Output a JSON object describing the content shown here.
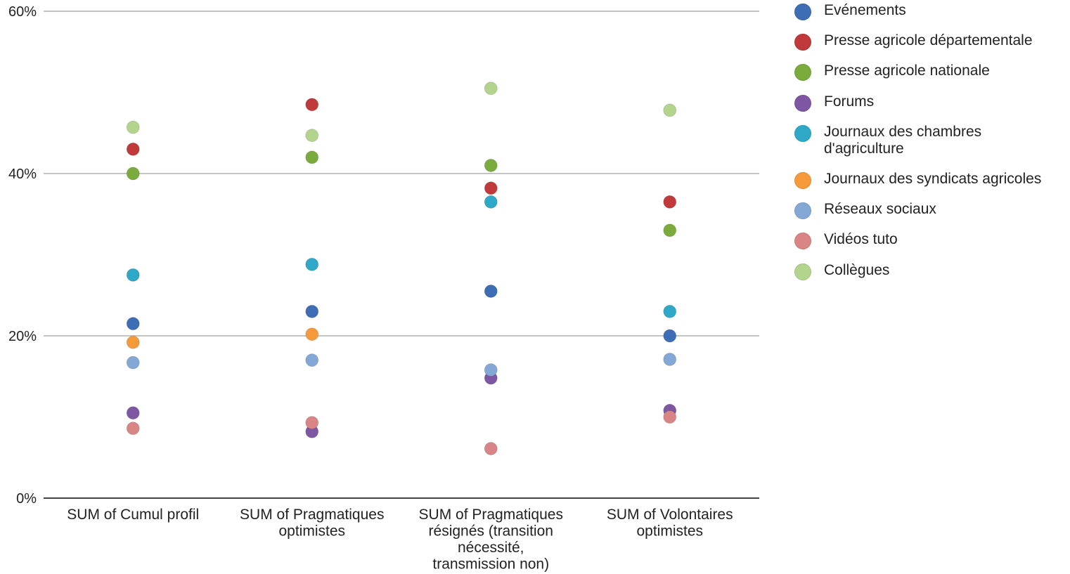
{
  "chart_data": {
    "type": "scatter",
    "title": "",
    "xlabel": "",
    "ylabel": "",
    "ylim": [
      0,
      60
    ],
    "yticks": [
      "0%",
      "20%",
      "40%",
      "60%"
    ],
    "grid": true,
    "legend_position": "right",
    "categories": [
      "SUM of Cumul profil",
      "SUM of Pragmatiques optimistes",
      "SUM of Pragmatiques résignés (transition nécessité, transmission non)",
      "SUM of Volontaires optimistes"
    ],
    "category_lines": [
      [
        "SUM of Cumul profil"
      ],
      [
        "SUM of Pragmatiques",
        "optimistes"
      ],
      [
        "SUM of Pragmatiques",
        "résignés (transition",
        "nécessité,",
        "transmission non)"
      ],
      [
        "SUM of Volontaires",
        "optimistes"
      ]
    ],
    "series": [
      {
        "name": "Evénements",
        "color": "#3d6db5",
        "values": [
          21.5,
          23,
          25.5,
          20
        ]
      },
      {
        "name": "Presse agricole départementale",
        "color": "#c0393b",
        "values": [
          43,
          48.5,
          38.2,
          36.5
        ]
      },
      {
        "name": "Presse agricole nationale",
        "color": "#7bab3c",
        "values": [
          40,
          42,
          41,
          33
        ]
      },
      {
        "name": "Forums",
        "color": "#7e57a3",
        "values": [
          10.5,
          8.2,
          14.8,
          10.8
        ]
      },
      {
        "name": "Journaux des chambres d'agriculture",
        "color": "#2ea8c6",
        "values": [
          27.5,
          28.8,
          36.5,
          23
        ]
      },
      {
        "name": "Journaux des syndicats agricoles",
        "color": "#f59a3a",
        "values": [
          19.2,
          20.2,
          null,
          null
        ]
      },
      {
        "name": "Réseaux sociaux",
        "color": "#84a8d6",
        "values": [
          16.7,
          17,
          15.8,
          17.1
        ]
      },
      {
        "name": "Vidéos tuto",
        "color": "#d98585",
        "values": [
          8.6,
          9.3,
          6.1,
          10
        ]
      },
      {
        "name": "Collègues",
        "color": "#b2d48c",
        "values": [
          45.7,
          44.7,
          50.5,
          47.8
        ]
      }
    ]
  },
  "legend": {
    "items": [
      {
        "lines": [
          "Evénements"
        ]
      },
      {
        "lines": [
          "Presse agricole départementale"
        ]
      },
      {
        "lines": [
          "Presse agricole nationale"
        ]
      },
      {
        "lines": [
          "Forums"
        ]
      },
      {
        "lines": [
          "Journaux des chambres",
          "d'agriculture"
        ]
      },
      {
        "lines": [
          "Journaux des syndicats agricoles"
        ]
      },
      {
        "lines": [
          "Réseaux sociaux"
        ]
      },
      {
        "lines": [
          "Vidéos tuto"
        ]
      },
      {
        "lines": [
          "Collègues"
        ]
      }
    ]
  }
}
